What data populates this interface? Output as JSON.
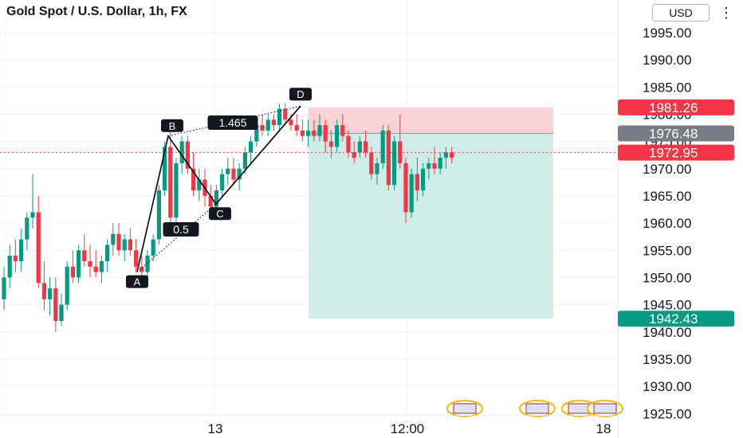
{
  "header": {
    "title": "Gold Spot / U.S. Dollar, 1h, FX",
    "currency": "USD",
    "settings_icon": "gear-icon"
  },
  "colors": {
    "up": "#089981",
    "down": "#f23645",
    "stop_zone": "#f7c4c7",
    "target_zone": "#bfe5e0",
    "entry_label": "#787b86",
    "pattern_line": "#000000"
  },
  "chart_data": {
    "type": "candlestick",
    "title": "Gold Spot / U.S. Dollar, 1h, FX",
    "ylim": [
      1920.5,
      2001
    ],
    "y_ticks": [
      1925,
      1930,
      1935,
      1940,
      1945,
      1950,
      1955,
      1960,
      1965,
      1970,
      1975,
      1980,
      1985,
      1990,
      1995
    ],
    "y_tick_labels": [
      "1925.00",
      "1930.00",
      "1935.00",
      "1940.00",
      "1945.00",
      "1950.00",
      "1955.00",
      "1960.00",
      "1965.00",
      "1970.00",
      "1975.00",
      "1980.00",
      "1985.00",
      "1990.00",
      "1995.00"
    ],
    "x_labels": [
      "13",
      "12:00",
      "18"
    ],
    "grid": true,
    "price_labels": [
      {
        "value": 1981.26,
        "text": "1981.26",
        "role": "stop"
      },
      {
        "value": 1976.48,
        "text": "1976.48",
        "role": "entry"
      },
      {
        "value": 1972.95,
        "text": "1972.95",
        "role": "last"
      },
      {
        "value": 1942.43,
        "text": "1942.43",
        "role": "target"
      }
    ],
    "position": {
      "entry": 1976.48,
      "stop": 1981.26,
      "target": 1942.43
    },
    "pattern": {
      "points": [
        {
          "label": "A",
          "value": 1951
        },
        {
          "label": "B",
          "value": 1976
        },
        {
          "label": "C",
          "value": 1963.5
        },
        {
          "label": "D",
          "value": 1981.5
        }
      ],
      "ratios": [
        "0.5",
        "1.465"
      ]
    },
    "candles": [
      [
        1946,
        1952,
        1944,
        1950
      ],
      [
        1950,
        1956,
        1948,
        1954
      ],
      [
        1954,
        1957,
        1951,
        1953
      ],
      [
        1953,
        1959,
        1951,
        1957
      ],
      [
        1957,
        1962,
        1955,
        1961
      ],
      [
        1961,
        1969,
        1959,
        1962
      ],
      [
        1962,
        1965,
        1948,
        1949
      ],
      [
        1949,
        1953,
        1944,
        1946
      ],
      [
        1946,
        1950,
        1943,
        1948
      ],
      [
        1948,
        1950,
        1940,
        1942
      ],
      [
        1942,
        1947,
        1941,
        1945
      ],
      [
        1945,
        1953,
        1944,
        1952
      ],
      [
        1952,
        1955,
        1949,
        1950
      ],
      [
        1950,
        1956,
        1949,
        1955
      ],
      [
        1955,
        1958,
        1952,
        1953
      ],
      [
        1953,
        1956,
        1950,
        1952
      ],
      [
        1952,
        1955,
        1950,
        1951
      ],
      [
        1951,
        1954,
        1949,
        1953
      ],
      [
        1953,
        1957,
        1951,
        1956
      ],
      [
        1956,
        1960,
        1954,
        1958
      ],
      [
        1958,
        1960,
        1954,
        1955
      ],
      [
        1955,
        1958,
        1953,
        1957
      ],
      [
        1957,
        1959,
        1954,
        1955
      ],
      [
        1955,
        1957,
        1951,
        1952
      ],
      [
        1952,
        1954,
        1950,
        1951
      ],
      [
        1951,
        1955,
        1950,
        1954
      ],
      [
        1954,
        1958,
        1953,
        1957
      ],
      [
        1957,
        1967,
        1956,
        1966
      ],
      [
        1966,
        1975,
        1965,
        1974
      ],
      [
        1974,
        1977,
        1960,
        1961
      ],
      [
        1961,
        1972,
        1959,
        1971
      ],
      [
        1971,
        1976,
        1969,
        1975
      ],
      [
        1975,
        1976,
        1969,
        1970
      ],
      [
        1970,
        1973,
        1965,
        1966
      ],
      [
        1966,
        1970,
        1964,
        1968
      ],
      [
        1968,
        1970,
        1963,
        1965
      ],
      [
        1965,
        1967,
        1962,
        1963
      ],
      [
        1963,
        1967,
        1962,
        1966
      ],
      [
        1966,
        1970,
        1965,
        1969
      ],
      [
        1969,
        1972,
        1967,
        1970
      ],
      [
        1970,
        1972,
        1967,
        1968
      ],
      [
        1968,
        1971,
        1966,
        1970
      ],
      [
        1970,
        1974,
        1969,
        1973
      ],
      [
        1973,
        1976,
        1971,
        1975
      ],
      [
        1975,
        1979,
        1974,
        1978
      ],
      [
        1978,
        1980,
        1976,
        1977
      ],
      [
        1977,
        1980,
        1976,
        1979
      ],
      [
        1979,
        1980,
        1977,
        1978
      ],
      [
        1978,
        1982,
        1977,
        1981
      ],
      [
        1981,
        1982,
        1978,
        1979
      ],
      [
        1979,
        1980,
        1977,
        1978
      ],
      [
        1978,
        1980,
        1976,
        1977
      ],
      [
        1977,
        1979,
        1975,
        1976
      ],
      [
        1976,
        1979,
        1974,
        1977
      ],
      [
        1977,
        1979,
        1975,
        1976
      ],
      [
        1976,
        1980,
        1975,
        1978
      ],
      [
        1978,
        1979,
        1973,
        1975
      ],
      [
        1975,
        1977,
        1972,
        1974
      ],
      [
        1974,
        1979,
        1973,
        1978
      ],
      [
        1978,
        1980,
        1975,
        1976
      ],
      [
        1976,
        1977,
        1972,
        1973
      ],
      [
        1973,
        1975,
        1971,
        1972
      ],
      [
        1973,
        1976,
        1972,
        1975
      ],
      [
        1975,
        1977,
        1972,
        1973
      ],
      [
        1973,
        1974,
        1968,
        1969
      ],
      [
        1969,
        1972,
        1967,
        1971
      ],
      [
        1971,
        1978,
        1970,
        1977
      ],
      [
        1977,
        1978,
        1966,
        1967
      ],
      [
        1967,
        1976,
        1966,
        1975
      ],
      [
        1975,
        1980,
        1970,
        1971
      ],
      [
        1971,
        1972,
        1960,
        1962
      ],
      [
        1962,
        1970,
        1961,
        1969
      ],
      [
        1969,
        1972,
        1964,
        1966
      ],
      [
        1966,
        1971,
        1965,
        1970
      ],
      [
        1970,
        1972,
        1968,
        1971
      ],
      [
        1971,
        1974,
        1969,
        1970
      ],
      [
        1970,
        1973,
        1969,
        1972
      ],
      [
        1972,
        1974,
        1970,
        1973
      ],
      [
        1973,
        1974,
        1971,
        1972
      ]
    ]
  }
}
